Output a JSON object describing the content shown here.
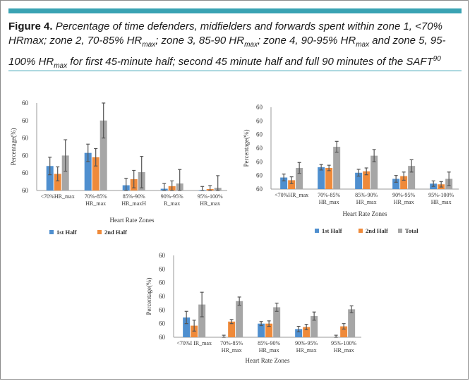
{
  "figure": {
    "label": "Figure 4.",
    "caption_parts": [
      {
        "t": "Percentage of time defenders, midfielders and forwards spent within zone 1, <70% HRmax; zone 2, 70-85% HR",
        "s": ""
      },
      {
        "t": "max",
        "s": "sub"
      },
      {
        "t": "; zone 3, 85-90 HR",
        "s": ""
      },
      {
        "t": "max",
        "s": "sub"
      },
      {
        "t": "; zone 4, 90-95% HR",
        "s": ""
      },
      {
        "t": "max",
        "s": "sub"
      },
      {
        "t": " and zone 5, 95-100% HR",
        "s": ""
      },
      {
        "t": "max",
        "s": "sub"
      },
      {
        "t": " for first 45-minute half; second 45 minute half and full 90 minutes of the SAFT",
        "s": ""
      },
      {
        "t": "90",
        "s": "sup"
      }
    ]
  },
  "colors": {
    "first": "#4f8fcf",
    "second": "#ef8a3a",
    "total": "#a6a6a6",
    "error": "#555555",
    "axis": "#999999",
    "accent": "#3aa3b3"
  },
  "chart_data": [
    {
      "type": "bar",
      "ylabel": "Percentage(%)",
      "xlabel": "Heart Rate Zones",
      "yticks": [
        "60",
        "60",
        "60",
        "60",
        "60",
        "60"
      ],
      "ylim": [
        0,
        50
      ],
      "categories": [
        [
          "<70%HR_max"
        ],
        [
          "70%-85%",
          "HR_max"
        ],
        [
          "85%-90%",
          "HR_maxH"
        ],
        [
          "90%-95%",
          "R_max"
        ],
        [
          "95%-100%",
          "HR_max"
        ]
      ],
      "series": [
        {
          "name": "1st Half",
          "color": "first",
          "values": [
            14,
            21.5,
            3,
            1,
            0.3
          ],
          "errors": [
            5,
            5,
            4,
            3,
            2
          ]
        },
        {
          "name": "2nd Half",
          "color": "second",
          "values": [
            9.5,
            19,
            6.5,
            2.5,
            0.8
          ],
          "errors": [
            4,
            5,
            5,
            3,
            2
          ]
        },
        {
          "name": "",
          "color": "total",
          "values": [
            20,
            40,
            10.5,
            4,
            1.5
          ],
          "errors": [
            9,
            10,
            9,
            8,
            7
          ]
        }
      ],
      "legend": [
        "1st Half",
        "2nd Half"
      ]
    },
    {
      "type": "bar",
      "ylabel": "Percentage(%)",
      "xlabel": "Heart Rate Zones",
      "yticks": [
        "60",
        "60",
        "60",
        "60",
        "60",
        "60",
        "60"
      ],
      "ylim": [
        0,
        60
      ],
      "categories": [
        [
          "<70%HR_max"
        ],
        [
          "70%-85%",
          "HR_max"
        ],
        [
          "85%-90%",
          "HR_max"
        ],
        [
          "90%-95%",
          "HR_max"
        ],
        [
          "95%-100%",
          "HR_max"
        ]
      ],
      "series": [
        {
          "name": "1st Half",
          "color": "first",
          "values": [
            8.5,
            16,
            12,
            7.5,
            4
          ],
          "errors": [
            2.5,
            2,
            2.5,
            2.5,
            2
          ]
        },
        {
          "name": "2nd Half",
          "color": "second",
          "values": [
            6.5,
            15.5,
            13,
            9.5,
            3.5
          ],
          "errors": [
            2.5,
            2,
            2.5,
            3,
            2
          ]
        },
        {
          "name": "Total",
          "color": "total",
          "values": [
            15.5,
            31,
            24.5,
            17,
            7.5
          ],
          "errors": [
            4,
            4,
            4.5,
            4.5,
            5
          ]
        }
      ],
      "legend": [
        "1st Half",
        "2nd Half",
        "Total"
      ]
    },
    {
      "type": "bar",
      "ylabel": "Percentage(%)",
      "xlabel": "Heart Rate Zones",
      "yticks": [
        "60",
        "60",
        "60",
        "60",
        "60",
        "60",
        "60"
      ],
      "ylim": [
        0,
        60
      ],
      "categories": [
        [
          "<70%I IR_max"
        ],
        [
          "70%-85%",
          "HR_max"
        ],
        [
          "85%-90%",
          "HR_max"
        ],
        [
          "90%-95%",
          "HR_max"
        ],
        [
          "95%-100%",
          "HR_max"
        ]
      ],
      "series": [
        {
          "name": "",
          "color": "first",
          "values": [
            14.5,
            0,
            10,
            6,
            0
          ],
          "errors": [
            4.5,
            1.5,
            1.5,
            2,
            1.5
          ]
        },
        {
          "name": "",
          "color": "second",
          "values": [
            8.5,
            11.5,
            10,
            7.5,
            8
          ],
          "errors": [
            4,
            1.5,
            2,
            2,
            2
          ]
        },
        {
          "name": "",
          "color": "total",
          "values": [
            24,
            26.5,
            22,
            15.5,
            20.5
          ],
          "errors": [
            9,
            3,
            3,
            3,
            2.5
          ]
        }
      ],
      "legend": []
    }
  ]
}
